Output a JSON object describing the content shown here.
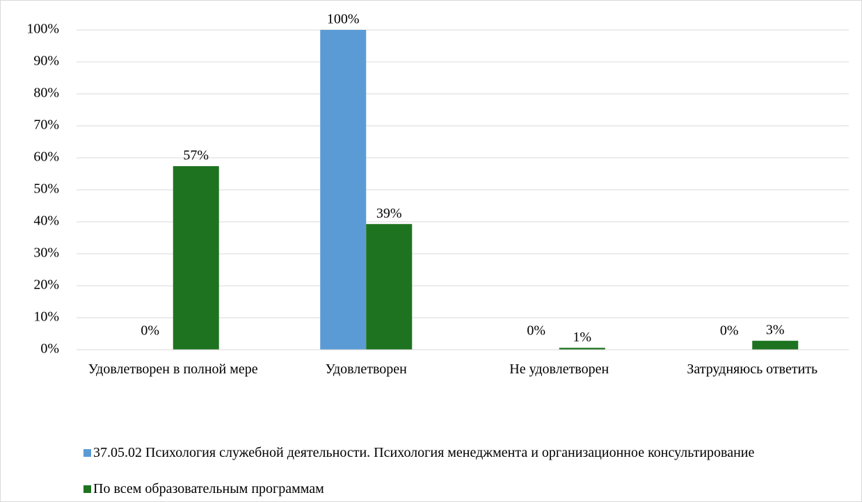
{
  "chart_data": {
    "type": "bar",
    "categories": [
      "Удовлетворен в полной мере",
      "Удовлетворен",
      "Не удовлетворен",
      "Затрудняюсь ответить"
    ],
    "series": [
      {
        "name": "37.05.02 Психология служебной деятельности. Психология менеджмента и организационное консультирование",
        "color": "#5b9bd5",
        "values": [
          0,
          100,
          0,
          0
        ],
        "value_labels": [
          "0%",
          "100%",
          "0%",
          "0%"
        ]
      },
      {
        "name": "По всем образовательным программам",
        "color": "#1e7321",
        "values": [
          57.4,
          39.3,
          0.6,
          2.8
        ],
        "value_labels": [
          "57%",
          "39%",
          "1%",
          "3%"
        ]
      }
    ],
    "ylim": [
      0,
      100
    ],
    "yticks": [
      {
        "value": 0,
        "label": "0%"
      },
      {
        "value": 10,
        "label": "10%"
      },
      {
        "value": 20,
        "label": "20%"
      },
      {
        "value": 30,
        "label": "30%"
      },
      {
        "value": 40,
        "label": "40%"
      },
      {
        "value": 50,
        "label": "50%"
      },
      {
        "value": 60,
        "label": "60%"
      },
      {
        "value": 70,
        "label": "70%"
      },
      {
        "value": 80,
        "label": "80%"
      },
      {
        "value": 90,
        "label": "90%"
      },
      {
        "value": 100,
        "label": "100%"
      }
    ],
    "grid": true,
    "legend": "bottom"
  }
}
